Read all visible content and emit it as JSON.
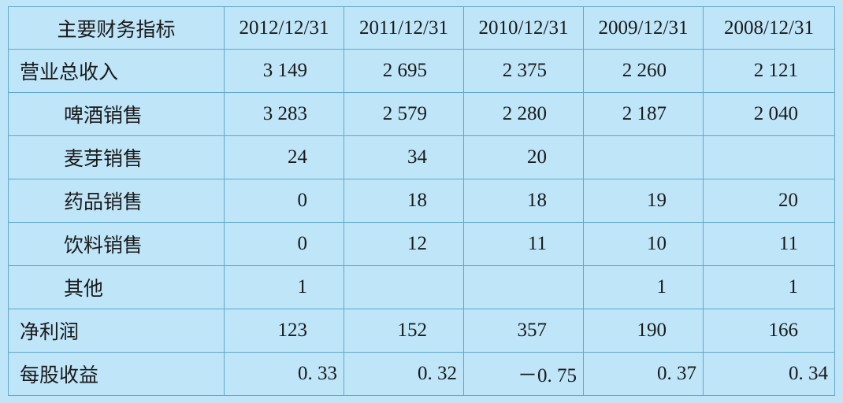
{
  "table": {
    "header": [
      "主要财务指标",
      "2012/12/31",
      "2011/12/31",
      "2010/12/31",
      "2009/12/31",
      "2008/12/31"
    ],
    "rows": [
      [
        "营业总收入",
        "3 149",
        "2 695",
        "2 375",
        "2 260",
        "2 121"
      ],
      [
        "啤酒销售",
        "3 283",
        "2 579",
        "2 280",
        "2 187",
        "2 040"
      ],
      [
        "麦芽销售",
        "24",
        "34",
        "20",
        null,
        null
      ],
      [
        "药品销售",
        "0",
        "18",
        "18",
        "19",
        "20"
      ],
      [
        "饮料销售",
        "0",
        "12",
        "11",
        "10",
        "11"
      ],
      [
        "其他",
        "1",
        null,
        null,
        "1",
        "1"
      ],
      [
        "净利润",
        "123",
        "152",
        "357",
        "190",
        "166"
      ],
      [
        "每股收益",
        "0. 33",
        "0. 32",
        "－0. 75",
        "0. 37",
        "0. 34"
      ]
    ]
  }
}
